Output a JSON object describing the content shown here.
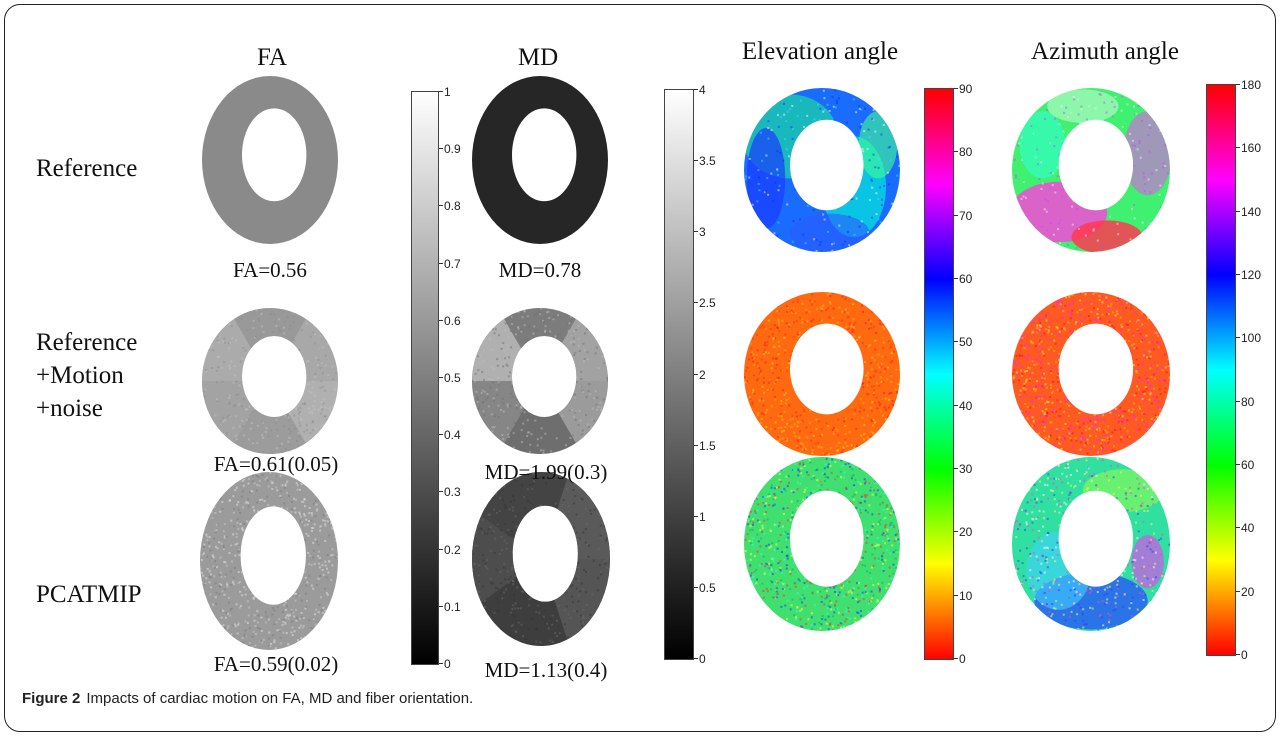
{
  "columns": {
    "fa": "FA",
    "md": "MD",
    "elevation": "Elevation angle",
    "azimuth": "Azimuth angle"
  },
  "rows": {
    "reference": "Reference",
    "motion_lines": [
      "Reference",
      "+Motion",
      "+noise"
    ],
    "pcatmip": "PCATMIP"
  },
  "values": {
    "fa_reference": "FA=0.56",
    "fa_motion": "FA=0.61(0.05)",
    "fa_pcatmip": "FA=0.59(0.02)",
    "md_reference": "MD=0.78",
    "md_motion": "MD=1.99(0.3)",
    "md_pcatmip": "MD=1.13(0.4)"
  },
  "colorbars": {
    "fa": {
      "ticks": [
        "1",
        "0.9",
        "0.8",
        "0.7",
        "0.6",
        "0.5",
        "0.4",
        "0.3",
        "0.2",
        "0.1",
        "0"
      ],
      "range": [
        0,
        1
      ],
      "colormap": "gray"
    },
    "md": {
      "ticks": [
        "4",
        "3.5",
        "3",
        "2.5",
        "2",
        "1.5",
        "1",
        "0.5",
        "0"
      ],
      "range": [
        0,
        4
      ],
      "colormap": "gray"
    },
    "elevation": {
      "ticks": [
        "90",
        "80",
        "70",
        "60",
        "50",
        "40",
        "30",
        "20",
        "10",
        "0"
      ],
      "range": [
        0,
        90
      ],
      "colormap": "hsv"
    },
    "azimuth": {
      "ticks": [
        "180",
        "160",
        "140",
        "120",
        "100",
        "80",
        "60",
        "40",
        "20",
        "0"
      ],
      "range": [
        0,
        180
      ],
      "colormap": "hsv"
    }
  },
  "colors": {
    "fa_reference": "#8a8a8a",
    "md_reference": "#262626",
    "red": "#ff1a1a",
    "orange": "#ff6a10"
  },
  "caption": {
    "label": "Figure 2",
    "text": "Impacts of cardiac motion on FA, MD and fiber orientation."
  }
}
